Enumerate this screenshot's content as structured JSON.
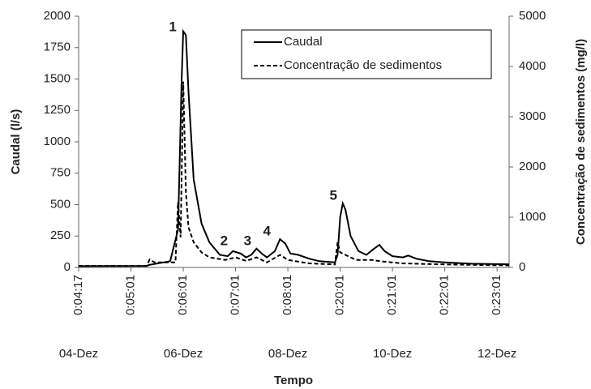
{
  "chart_data": {
    "type": "line",
    "y_label": "Caudal (l/s)",
    "y2_label": "Concentração de sedimentos (mg/l)",
    "x_label": "Tempo",
    "xlim": [
      0,
      8.23
    ],
    "xticks": [
      {
        "value": 0,
        "label": "0:04:17"
      },
      {
        "value": 1,
        "label": "0:05:01"
      },
      {
        "value": 2,
        "label": "0:06:01"
      },
      {
        "value": 3,
        "label": "0:07:01"
      },
      {
        "value": 4,
        "label": "0:08:01"
      },
      {
        "value": 5,
        "label": "0:20:01"
      },
      {
        "value": 6,
        "label": "0:21:01"
      },
      {
        "value": 7,
        "label": "0:22:01"
      },
      {
        "value": 8,
        "label": "0:23:01"
      }
    ],
    "date_labels": [
      {
        "value": 0,
        "label": "04-Dez"
      },
      {
        "value": 2,
        "label": "06-Dez"
      },
      {
        "value": 4,
        "label": "08-Dez"
      },
      {
        "value": 6,
        "label": "10-Dez"
      },
      {
        "value": 8,
        "label": "12-Dez"
      }
    ],
    "ylim": [
      0,
      2000
    ],
    "yticks": [
      0,
      250,
      500,
      750,
      1000,
      1250,
      1500,
      1750,
      2000
    ],
    "y2lim": [
      0,
      5000
    ],
    "y2ticks": [
      0,
      1000,
      2000,
      3000,
      4000,
      5000
    ],
    "legend": "upper right",
    "series": [
      {
        "name": "Caudal",
        "color": "#000000",
        "linestyle": "solid",
        "x": [
          0,
          1.3,
          1.35,
          1.75,
          1.9,
          1.97,
          2.0,
          2.05,
          2.1,
          2.2,
          2.35,
          2.5,
          2.7,
          2.85,
          2.95,
          3.1,
          3.2,
          3.3,
          3.4,
          3.5,
          3.6,
          3.75,
          3.85,
          3.95,
          4.05,
          4.2,
          4.4,
          4.6,
          4.9,
          4.95,
          5.0,
          5.05,
          5.1,
          5.2,
          5.35,
          5.5,
          5.65,
          5.75,
          5.85,
          6.0,
          6.2,
          6.3,
          6.45,
          6.7,
          7.0,
          7.5,
          8.23
        ],
        "values": [
          10,
          12,
          20,
          50,
          300,
          1500,
          1880,
          1850,
          1400,
          700,
          350,
          200,
          100,
          90,
          130,
          110,
          80,
          100,
          150,
          110,
          80,
          130,
          225,
          190,
          110,
          100,
          70,
          50,
          40,
          100,
          400,
          510,
          460,
          250,
          130,
          100,
          150,
          180,
          130,
          90,
          80,
          95,
          70,
          50,
          40,
          30,
          25
        ]
      },
      {
        "name": "Concentração de sedimentos",
        "color": "#000000",
        "linestyle": "dashed",
        "axis": "y2",
        "x": [
          0,
          1.3,
          1.36,
          1.45,
          1.85,
          1.9,
          1.95,
          2.0,
          2.05,
          2.1,
          2.2,
          2.35,
          2.5,
          2.8,
          3.0,
          3.2,
          3.4,
          3.6,
          3.85,
          4.0,
          4.4,
          4.9,
          4.95,
          5.0,
          5.1,
          5.3,
          5.6,
          5.8,
          6.2,
          7.0,
          8.23
        ],
        "values": [
          30,
          30,
          160,
          100,
          100,
          1300,
          600,
          3700,
          1500,
          800,
          500,
          300,
          200,
          150,
          200,
          130,
          200,
          100,
          250,
          150,
          80,
          60,
          500,
          300,
          250,
          150,
          150,
          120,
          80,
          60,
          40
        ]
      }
    ],
    "annotations": [
      {
        "text": "1",
        "x": 1.8,
        "y": 1910
      },
      {
        "text": "2",
        "x": 2.78,
        "y": 206
      },
      {
        "text": "3",
        "x": 3.23,
        "y": 206
      },
      {
        "text": "4",
        "x": 3.6,
        "y": 284
      },
      {
        "text": "5",
        "x": 4.87,
        "y": 568
      }
    ]
  }
}
